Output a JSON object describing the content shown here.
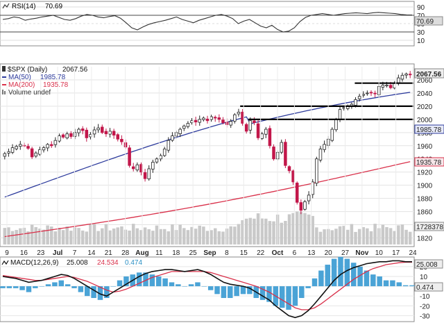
{
  "chart_data": {
    "type": "line",
    "symbol": "$SPX (Daily)",
    "last_price": 2067.56,
    "price_axis": {
      "ylim": [
        1810,
        2080
      ],
      "ticks": [
        1820,
        1840,
        1860,
        1880,
        1900,
        1920,
        1940,
        1960,
        1980,
        2000,
        2020,
        2040,
        2060
      ]
    },
    "x_ticks": [
      "9",
      "16",
      "23",
      "Jul",
      "7",
      "14",
      "21",
      "28",
      "Aug",
      "11",
      "18",
      "25",
      "Sep",
      "8",
      "15",
      "22",
      "Oct",
      "6",
      "13",
      "20",
      "27",
      "Nov",
      "10",
      "17",
      "24"
    ],
    "price_ohlc_close": [
      1948,
      1951,
      1957,
      1959,
      1962,
      1960,
      1956,
      1943,
      1949,
      1954,
      1957,
      1962,
      1960,
      1968,
      1975,
      1973,
      1978,
      1974,
      1980,
      1985,
      1983,
      1972,
      1977,
      1984,
      1987,
      1980,
      1978,
      1982,
      1976,
      1970,
      1966,
      1958,
      1930,
      1925,
      1931,
      1920,
      1910,
      1925,
      1935,
      1940,
      1945,
      1955,
      1968,
      1975,
      1980,
      1985,
      1990,
      1994,
      1998,
      1996,
      2000,
      2002,
      1998,
      2004,
      2002,
      2000,
      1995,
      1992,
      1997,
      2007,
      2011,
      1994,
      1982,
      1998,
      1995,
      1972,
      1978,
      1985,
      1960,
      1940,
      1950,
      1965,
      1930,
      1922,
      1905,
      1874,
      1862,
      1875,
      1885,
      1905,
      1940,
      1955,
      1962,
      1970,
      1985,
      2000,
      2015,
      2018,
      2020,
      2023,
      2030,
      2035,
      2038,
      2040,
      2040,
      2039,
      2050,
      2052,
      2052,
      2048,
      2055,
      2063,
      2067,
      2069,
      2067.56
    ],
    "ma50": {
      "name": "MA(50)",
      "last": 1985.78
    },
    "ma200": {
      "name": "MA(200)",
      "last": 1935.78
    },
    "volume": {
      "name": "Volume undef",
      "last": "1728378"
    },
    "resistance_levels": [
      2055,
      2020,
      2000
    ],
    "rsi": {
      "name": "RSI(14)",
      "last": 70.69,
      "ticks": [
        90,
        70,
        50,
        30,
        10
      ],
      "ylim": [
        0,
        100
      ],
      "values": [
        60,
        62,
        66,
        64,
        58,
        61,
        63,
        66,
        68,
        70,
        65,
        60,
        58,
        62,
        68,
        72,
        70,
        66,
        64,
        67,
        69,
        63,
        52,
        40,
        35,
        42,
        48,
        52,
        55,
        58,
        62,
        66,
        60,
        56,
        52,
        58,
        62,
        66,
        70,
        72,
        68,
        62,
        50,
        56,
        60,
        52,
        44,
        40,
        46,
        36,
        30,
        32,
        40,
        55,
        65,
        70,
        72,
        74,
        72,
        70,
        72,
        74,
        75,
        76,
        75,
        74,
        76,
        77,
        76,
        75,
        74,
        72,
        71,
        70.69
      ]
    },
    "macd": {
      "name": "MACD(12,26,9)",
      "value": 25.008,
      "signal": 24.534,
      "hist": 0.474,
      "ticks": [
        20,
        10,
        0,
        -10,
        -20,
        -30
      ],
      "ylim": [
        -34,
        27
      ],
      "macd_line": [
        10,
        9,
        8,
        6,
        4,
        5,
        6,
        8,
        10,
        12,
        11,
        8,
        4,
        0,
        -4,
        -8,
        -10,
        -6,
        -2,
        2,
        6,
        10,
        13,
        15,
        16,
        17,
        17,
        16,
        15,
        16,
        17,
        15,
        12,
        8,
        4,
        2,
        1,
        0,
        -2,
        -6,
        -10,
        -14,
        -20,
        -25,
        -30,
        -32,
        -30,
        -25,
        -18,
        -10,
        -2,
        6,
        12,
        16,
        19,
        21,
        23,
        24,
        25,
        25,
        26,
        26,
        25,
        25.008
      ],
      "signal_line": [
        11,
        10,
        9,
        8,
        7,
        6,
        6,
        7,
        8,
        9,
        10,
        9,
        7,
        5,
        2,
        -1,
        -4,
        -6,
        -5,
        -3,
        0,
        3,
        6,
        9,
        11,
        13,
        15,
        15,
        15,
        15,
        15,
        15,
        14,
        12,
        10,
        8,
        6,
        4,
        2,
        0,
        -3,
        -6,
        -10,
        -14,
        -18,
        -22,
        -24,
        -24,
        -22,
        -18,
        -13,
        -8,
        -3,
        2,
        7,
        11,
        15,
        18,
        20,
        22,
        23,
        24,
        24.5,
        24.534
      ]
    }
  }
}
